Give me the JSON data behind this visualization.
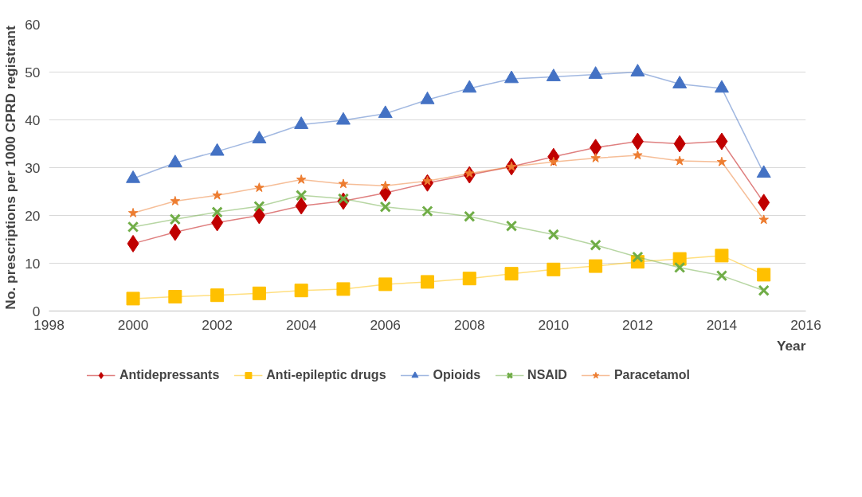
{
  "chart_data": {
    "type": "line",
    "xlabel": "Year",
    "ylabel": "No. prescriptions per 1000 CPRD registrant",
    "x": [
      2000,
      2001,
      2002,
      2003,
      2004,
      2005,
      2006,
      2007,
      2008,
      2009,
      2010,
      2011,
      2012,
      2013,
      2014,
      2015
    ],
    "series": [
      {
        "name": "Antidepressants",
        "color": "#c00000",
        "marker": "diamond",
        "values": [
          14.1,
          16.5,
          18.5,
          20,
          22,
          23,
          24.7,
          26.8,
          28.5,
          30.2,
          32.3,
          34.2,
          35.5,
          35,
          35.5,
          22.7
        ]
      },
      {
        "name": "Anti-epileptic drugs",
        "color": "#ffc000",
        "marker": "square",
        "values": [
          2.6,
          3,
          3.3,
          3.7,
          4.3,
          4.6,
          5.6,
          6.1,
          6.8,
          7.8,
          8.7,
          9.4,
          10.3,
          10.9,
          11.6,
          7.6
        ]
      },
      {
        "name": "Opioids",
        "color": "#4472c4",
        "marker": "triangle",
        "values": [
          27.7,
          31,
          33.4,
          36,
          39,
          39.9,
          41.3,
          44.2,
          46.6,
          48.6,
          49,
          49.5,
          50,
          47.5,
          46.6,
          28.8
        ]
      },
      {
        "name": "NSAID",
        "color": "#70ad47",
        "marker": "cross",
        "values": [
          17.6,
          19.2,
          20.7,
          21.9,
          24.2,
          23.5,
          21.8,
          20.9,
          19.8,
          17.8,
          16,
          13.8,
          11.3,
          9.1,
          7.4,
          4.3
        ]
      },
      {
        "name": "Paracetamol",
        "color": "#ed7d31",
        "marker": "star",
        "values": [
          20.5,
          23,
          24.2,
          25.8,
          27.5,
          26.6,
          26.2,
          27.2,
          28.8,
          30.2,
          31.2,
          32,
          32.6,
          31.4,
          31.2,
          19.1
        ]
      }
    ],
    "xlim": [
      1998,
      2016
    ],
    "xticks": [
      1998,
      2000,
      2002,
      2004,
      2006,
      2008,
      2010,
      2012,
      2014,
      2016
    ],
    "ylim": [
      0,
      60
    ],
    "yticks": [
      0,
      10,
      20,
      30,
      40,
      50,
      60
    ],
    "grid": "y",
    "legend": "bottom"
  }
}
